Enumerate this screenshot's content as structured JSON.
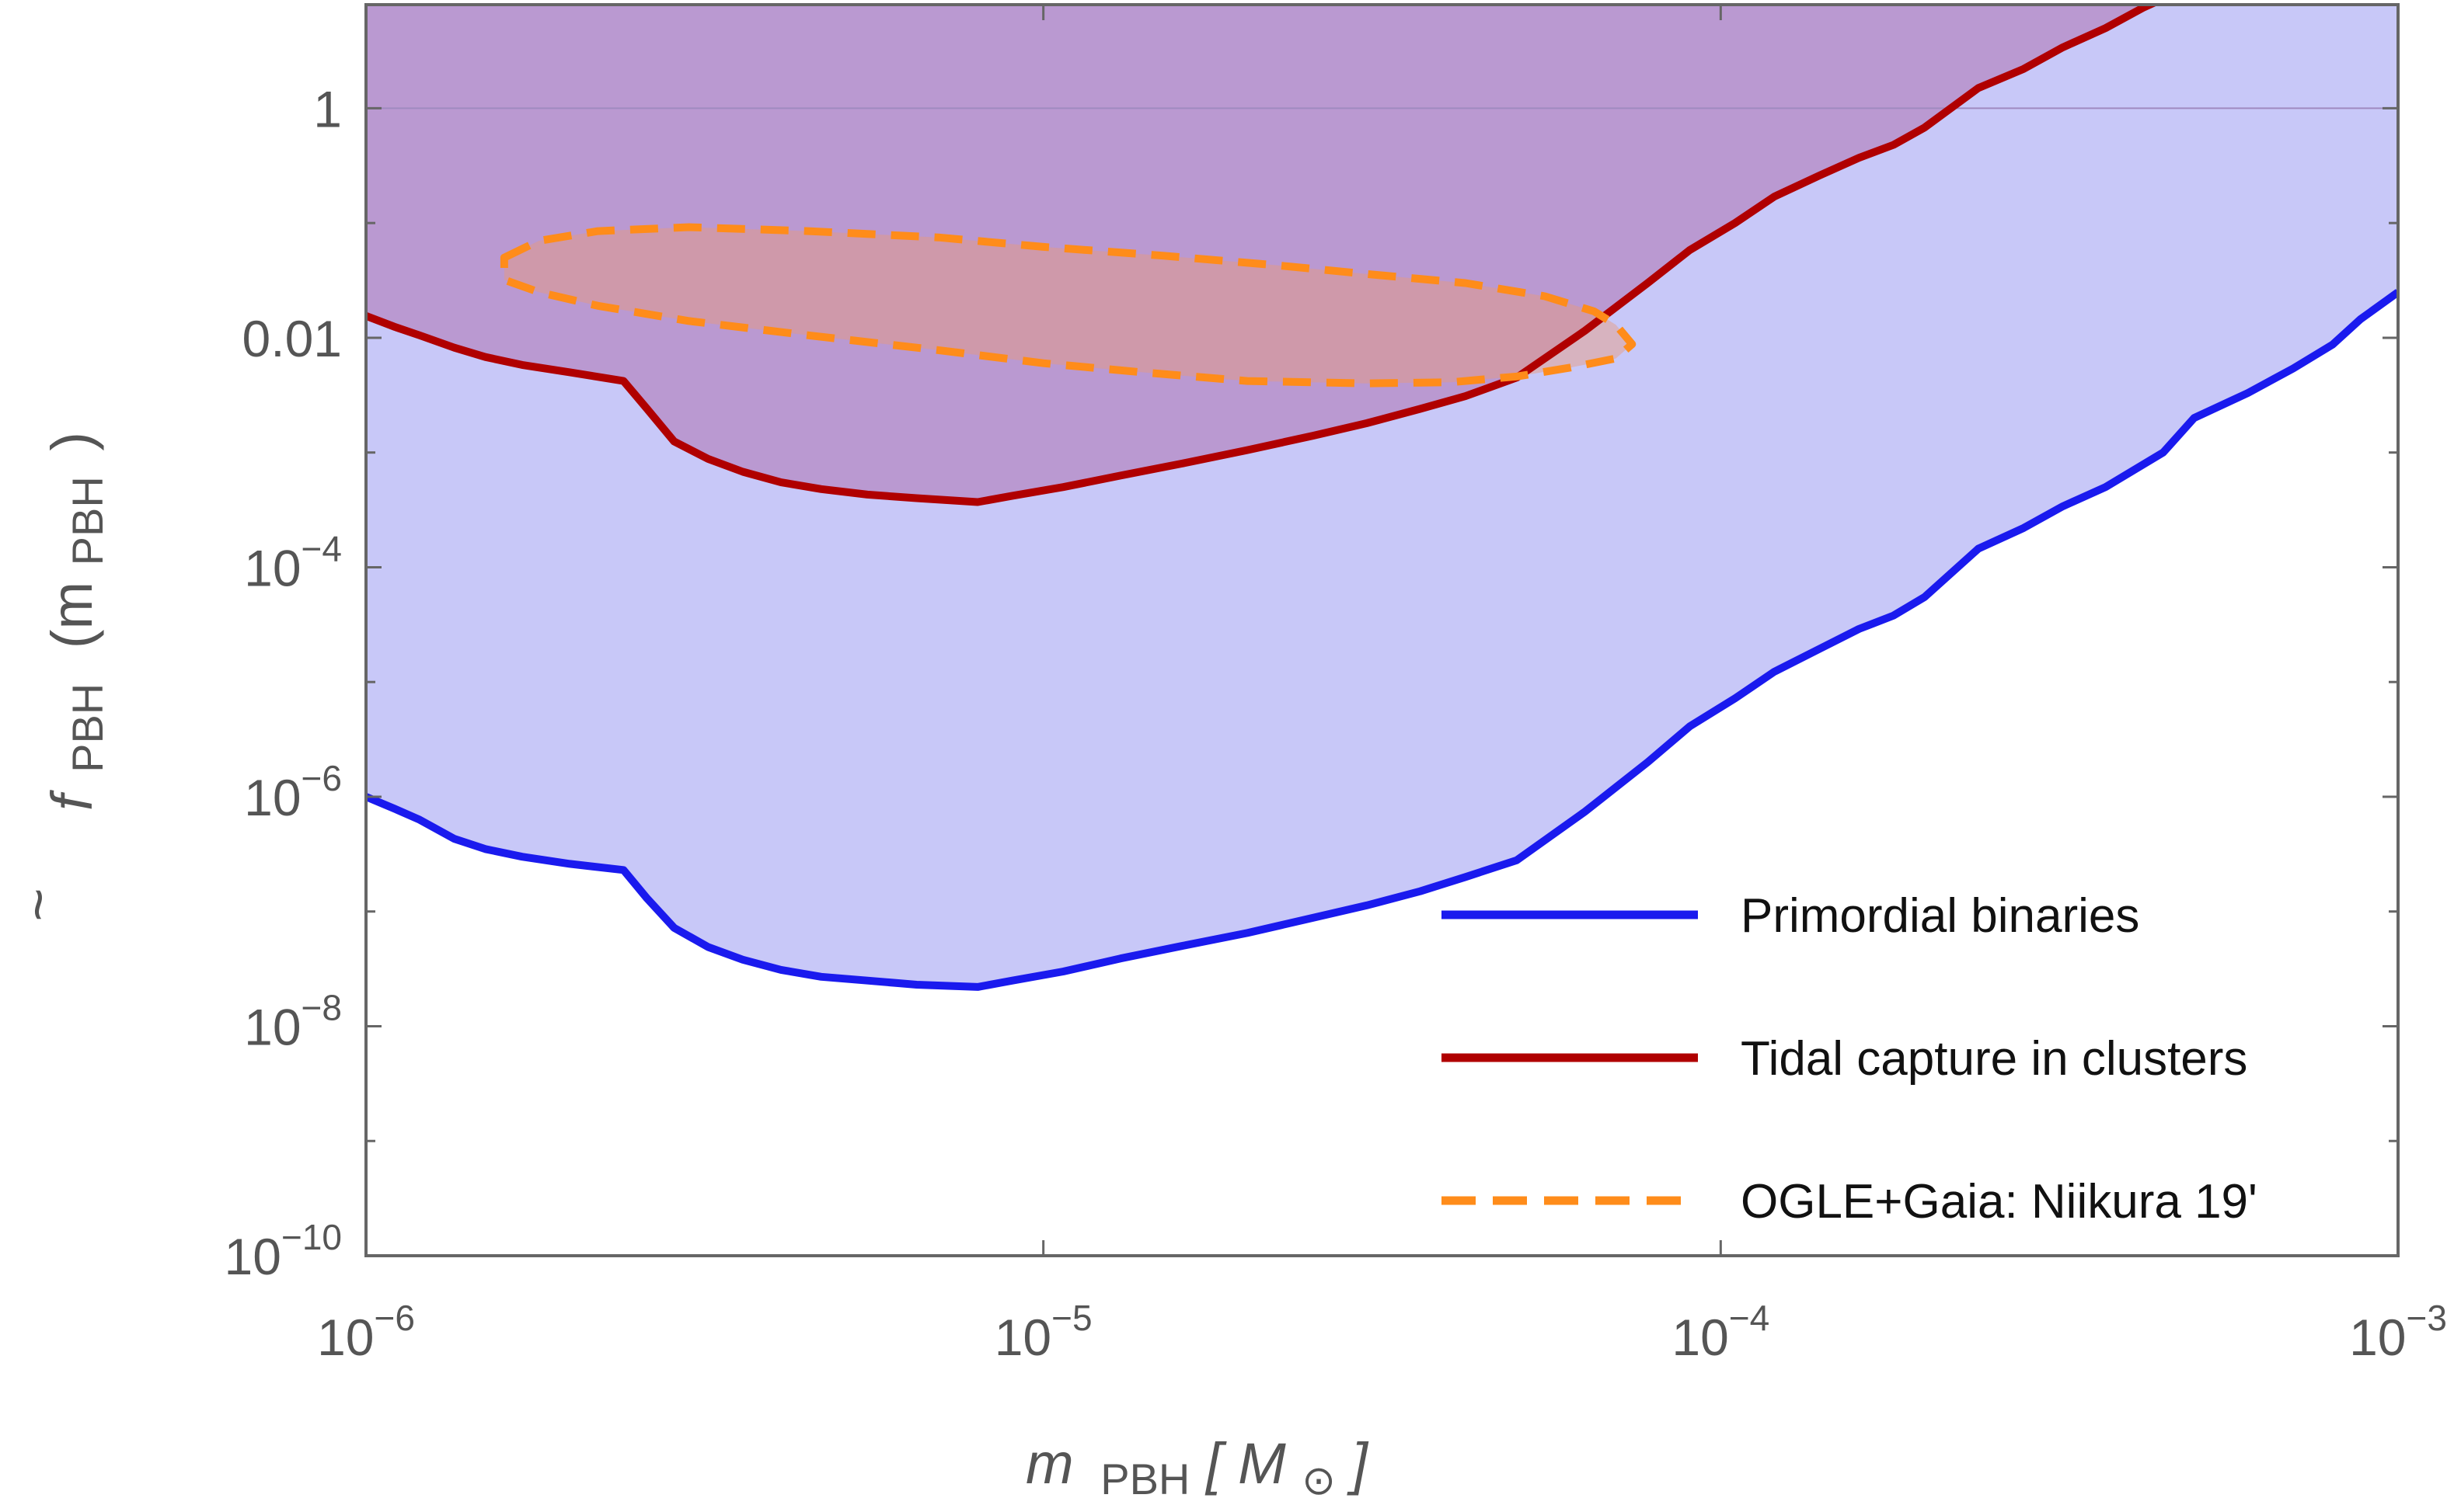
{
  "chart_data": {
    "type": "line",
    "title": "",
    "xscale": "log",
    "yscale": "log",
    "xlim": [
      1e-06,
      0.001
    ],
    "ylim": [
      1e-10,
      8
    ],
    "xlabel": {
      "main": "m",
      "sub": "PBH",
      "unit_open": "[",
      "unit_symbol": "M",
      "unit_sub": "⊙",
      "unit_close": "]"
    },
    "ylabel": {
      "tilde": "~",
      "main": "f",
      "sub": "PBH",
      "arg_open": "(m",
      "arg_sub": "PBH",
      "arg_close": ")"
    },
    "x_ticks": [
      {
        "value": 1e-06,
        "base": "10",
        "exp": "−6"
      },
      {
        "value": 1e-05,
        "base": "10",
        "exp": "−5"
      },
      {
        "value": 0.0001,
        "base": "10",
        "exp": "−4"
      },
      {
        "value": 0.001,
        "base": "10",
        "exp": "−3"
      }
    ],
    "y_ticks": [
      {
        "value": 1e-10,
        "base": "10",
        "exp": "−10"
      },
      {
        "value": 1e-08,
        "base": "10",
        "exp": "−8"
      },
      {
        "value": 1e-06,
        "base": "10",
        "exp": "−6"
      },
      {
        "value": 0.0001,
        "base": "10",
        "exp": "−4"
      },
      {
        "value": 0.01,
        "text": "0.01"
      },
      {
        "value": 1,
        "text": "1"
      }
    ],
    "y_minor_ticks": [
      1e-09,
      1e-07,
      1e-05,
      0.001,
      0.1
    ],
    "legend_position": "lower-right",
    "series": [
      {
        "name": "Primordial binaries",
        "color": "#1a1aee",
        "style": "solid",
        "fill": "#c8c8f8",
        "fill_to": "top",
        "x": [
          1e-06,
          1.1e-06,
          1.2e-06,
          1.35e-06,
          1.5e-06,
          1.7e-06,
          2e-06,
          2.4e-06,
          2.6e-06,
          2.85e-06,
          3.2e-06,
          3.6e-06,
          4.1e-06,
          4.7e-06,
          5.5e-06,
          6.5e-06,
          8e-06,
          9e-06,
          1.07e-05,
          1.3e-05,
          1.6e-05,
          2e-05,
          2.5e-05,
          3e-05,
          3.6e-05,
          4.2e-05,
          5e-05,
          6.3e-05,
          7.8e-05,
          9e-05,
          0.000105,
          0.00012,
          0.00014,
          0.00016,
          0.00018,
          0.0002,
          0.00024,
          0.00028,
          0.00032,
          0.00037,
          0.00045,
          0.0005,
          0.0006,
          0.0007,
          0.0008,
          0.00088,
          0.001
        ],
        "y": [
          1e-06,
          7.9e-07,
          6.3e-07,
          4.3e-07,
          3.5e-07,
          3e-07,
          2.6e-07,
          2.3e-07,
          1.3e-07,
          7.2e-08,
          4.9e-08,
          3.8e-08,
          3.1e-08,
          2.7e-08,
          2.5e-08,
          2.3e-08,
          2.2e-08,
          2.5e-08,
          3e-08,
          3.9e-08,
          5e-08,
          6.5e-08,
          8.8e-08,
          1.13e-07,
          1.5e-07,
          2e-07,
          2.8e-07,
          7.4e-07,
          2e-06,
          4.1e-06,
          7.2e-06,
          1.23e-05,
          1.95e-05,
          2.9e-05,
          3.8e-05,
          5.5e-05,
          0.000145,
          0.00022,
          0.00034,
          0.0005,
          0.001,
          0.002,
          0.0033,
          0.0054,
          0.0087,
          0.0145,
          0.025
        ]
      },
      {
        "name": "Tidal capture in clusters",
        "color": "#b00000",
        "style": "solid",
        "fill": "#b07ab8",
        "fill_opacity": 0.6,
        "fill_to": "top",
        "x": [
          1e-06,
          1.1e-06,
          1.2e-06,
          1.35e-06,
          1.5e-06,
          1.7e-06,
          2e-06,
          2.4e-06,
          2.6e-06,
          2.85e-06,
          3.2e-06,
          3.6e-06,
          4.1e-06,
          4.7e-06,
          5.5e-06,
          6.5e-06,
          8e-06,
          9e-06,
          1.07e-05,
          1.3e-05,
          1.6e-05,
          2e-05,
          2.5e-05,
          3e-05,
          3.6e-05,
          4.2e-05,
          5e-05,
          6.3e-05,
          7.8e-05,
          9e-05,
          0.000105,
          0.00012,
          0.00014,
          0.00016,
          0.00018,
          0.0002,
          0.00024,
          0.00028,
          0.00032,
          0.00037,
          0.00042,
          0.0005,
          0.00058
        ],
        "y": [
          0.0155,
          0.0125,
          0.0105,
          0.0082,
          0.0068,
          0.0058,
          0.005,
          0.0042,
          0.0024,
          0.00125,
          0.00088,
          0.00068,
          0.00055,
          0.00048,
          0.00043,
          0.0004,
          0.00037,
          0.00042,
          0.0005,
          0.00063,
          0.0008,
          0.00105,
          0.0014,
          0.0018,
          0.0024,
          0.0031,
          0.0045,
          0.0115,
          0.03,
          0.058,
          0.1,
          0.17,
          0.26,
          0.37,
          0.48,
          0.68,
          1.5,
          2.2,
          3.4,
          5.0,
          7.5,
          12.0,
          17.0
        ]
      },
      {
        "name": "OGLE+Gaia: Niikura 19'",
        "color": "#ff8c1a",
        "style": "dashed",
        "fill": "#e89a7a",
        "fill_opacity": 0.45,
        "closed": true,
        "x": [
          1.6e-06,
          1.8e-06,
          2.2e-06,
          3e-06,
          4.5e-06,
          7e-06,
          1e-05,
          1.5e-05,
          2.2e-05,
          3e-05,
          4.2e-05,
          5.5e-05,
          6.5e-05,
          7e-05,
          7.4e-05,
          7e-05,
          6e-05,
          5e-05,
          4e-05,
          3e-05,
          2e-05,
          1.4e-05,
          1e-05,
          7e-06,
          4.5e-06,
          3e-06,
          2.2e-06,
          1.8e-06,
          1.6e-06
        ],
        "y": [
          0.05,
          0.07,
          0.085,
          0.092,
          0.085,
          0.075,
          0.062,
          0.052,
          0.043,
          0.036,
          0.03,
          0.023,
          0.017,
          0.013,
          0.0088,
          0.0066,
          0.0055,
          0.0046,
          0.0041,
          0.004,
          0.0042,
          0.005,
          0.006,
          0.0078,
          0.0105,
          0.014,
          0.019,
          0.025,
          0.032
        ]
      }
    ]
  }
}
